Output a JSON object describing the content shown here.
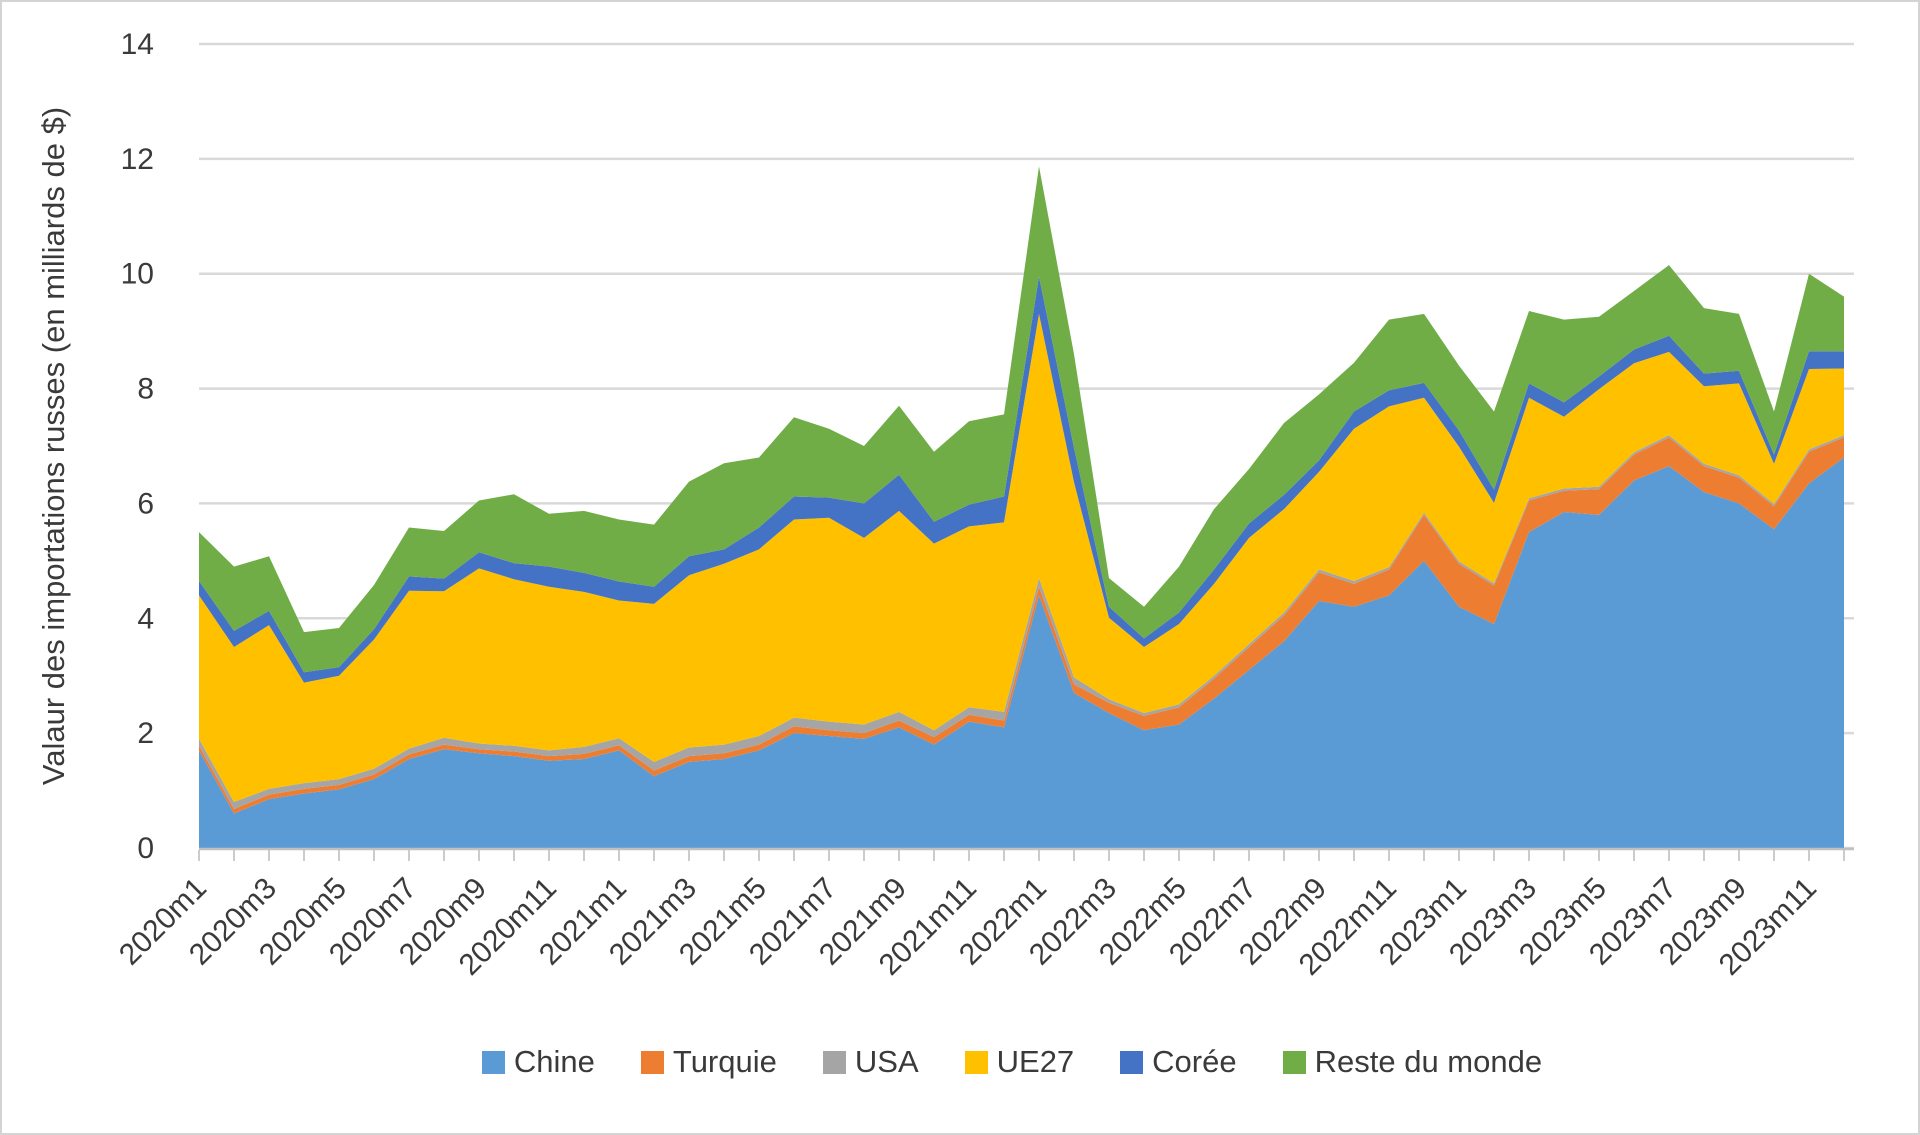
{
  "y_axis": {
    "title": "Valaur des importations russes (en milliards de $)",
    "ticks": [
      "0",
      "2",
      "4",
      "6",
      "8",
      "10",
      "12",
      "14"
    ]
  },
  "colors": {
    "gridline": "#d9d9d9",
    "axis_line": "#bfbfbf",
    "tick_mark": "#bfbfbf",
    "text": "#3a3a3a"
  },
  "chart_data": {
    "type": "area",
    "stacked": true,
    "title": "",
    "xlabel": "",
    "ylabel": "Valaur des importations russes (en milliards de $)",
    "ylim": [
      0,
      14
    ],
    "y_tick_step": 2,
    "grid": true,
    "legend_position": "bottom",
    "x_label_every": 2,
    "x": [
      "2020m1",
      "2020m2",
      "2020m3",
      "2020m4",
      "2020m5",
      "2020m6",
      "2020m7",
      "2020m8",
      "2020m9",
      "2020m10",
      "2020m11",
      "2020m12",
      "2021m1",
      "2021m2",
      "2021m3",
      "2021m4",
      "2021m5",
      "2021m6",
      "2021m7",
      "2021m8",
      "2021m9",
      "2021m10",
      "2021m11",
      "2021m12",
      "2022m1",
      "2022m2",
      "2022m3",
      "2022m4",
      "2022m5",
      "2022m6",
      "2022m7",
      "2022m8",
      "2022m9",
      "2022m10",
      "2022m11",
      "2022m12",
      "2023m1",
      "2023m2",
      "2023m3",
      "2023m4",
      "2023m5",
      "2023m6",
      "2023m7",
      "2023m8",
      "2023m9",
      "2023m10",
      "2023m11",
      "2023m12"
    ],
    "series": [
      {
        "name": "Chine",
        "color": "#5B9BD5",
        "values": [
          1.7,
          0.6,
          0.85,
          0.95,
          1.02,
          1.2,
          1.55,
          1.72,
          1.65,
          1.6,
          1.52,
          1.55,
          1.7,
          1.25,
          1.5,
          1.55,
          1.7,
          2.0,
          1.95,
          1.9,
          2.1,
          1.8,
          2.2,
          2.1,
          4.4,
          2.7,
          2.35,
          2.05,
          2.15,
          2.6,
          3.1,
          3.6,
          4.3,
          4.2,
          4.4,
          5.0,
          4.2,
          3.9,
          5.5,
          5.85,
          5.8,
          6.4,
          6.65,
          6.2,
          6.0,
          5.55,
          6.35,
          6.8
        ]
      },
      {
        "name": "Turquie",
        "color": "#ED7D31",
        "values": [
          0.08,
          0.08,
          0.08,
          0.08,
          0.08,
          0.08,
          0.08,
          0.08,
          0.07,
          0.08,
          0.08,
          0.09,
          0.09,
          0.1,
          0.1,
          0.1,
          0.1,
          0.12,
          0.1,
          0.1,
          0.12,
          0.13,
          0.12,
          0.12,
          0.15,
          0.15,
          0.18,
          0.25,
          0.3,
          0.35,
          0.4,
          0.45,
          0.5,
          0.4,
          0.45,
          0.8,
          0.75,
          0.67,
          0.55,
          0.37,
          0.45,
          0.45,
          0.5,
          0.45,
          0.45,
          0.4,
          0.55,
          0.35
        ]
      },
      {
        "name": "USA",
        "color": "#A5A5A5",
        "values": [
          0.12,
          0.12,
          0.1,
          0.1,
          0.1,
          0.1,
          0.1,
          0.12,
          0.1,
          0.1,
          0.1,
          0.12,
          0.12,
          0.15,
          0.15,
          0.15,
          0.15,
          0.15,
          0.15,
          0.15,
          0.15,
          0.12,
          0.13,
          0.15,
          0.15,
          0.12,
          0.06,
          0.05,
          0.05,
          0.05,
          0.05,
          0.05,
          0.05,
          0.05,
          0.04,
          0.04,
          0.04,
          0.04,
          0.04,
          0.04,
          0.04,
          0.04,
          0.04,
          0.04,
          0.04,
          0.04,
          0.04,
          0.04
        ]
      },
      {
        "name": "UE27",
        "color": "#FFC000",
        "values": [
          2.5,
          2.7,
          2.85,
          1.75,
          1.8,
          2.25,
          2.75,
          2.55,
          3.05,
          2.9,
          2.85,
          2.7,
          2.4,
          2.75,
          3.0,
          3.15,
          3.25,
          3.45,
          3.55,
          3.25,
          3.5,
          3.25,
          3.15,
          3.3,
          4.6,
          3.4,
          1.42,
          1.15,
          1.4,
          1.6,
          1.85,
          1.8,
          1.7,
          2.65,
          2.8,
          2.0,
          2.0,
          1.4,
          1.75,
          1.25,
          1.7,
          1.55,
          1.45,
          1.35,
          1.6,
          0.7,
          1.4,
          1.16
        ]
      },
      {
        "name": "Corée",
        "color": "#4472C4",
        "values": [
          0.25,
          0.28,
          0.25,
          0.18,
          0.15,
          0.18,
          0.25,
          0.22,
          0.28,
          0.28,
          0.35,
          0.33,
          0.33,
          0.3,
          0.33,
          0.25,
          0.38,
          0.4,
          0.35,
          0.6,
          0.63,
          0.38,
          0.38,
          0.45,
          0.65,
          0.6,
          0.19,
          0.15,
          0.2,
          0.25,
          0.25,
          0.25,
          0.2,
          0.3,
          0.28,
          0.26,
          0.28,
          0.23,
          0.25,
          0.25,
          0.22,
          0.24,
          0.28,
          0.22,
          0.22,
          0.16,
          0.31,
          0.3
        ]
      },
      {
        "name": "Reste du monde",
        "color": "#70AD47",
        "values": [
          0.85,
          1.12,
          0.95,
          0.7,
          0.68,
          0.77,
          0.85,
          0.83,
          0.9,
          1.2,
          0.92,
          1.08,
          1.08,
          1.08,
          1.3,
          1.5,
          1.22,
          1.38,
          1.2,
          1.0,
          1.2,
          1.22,
          1.45,
          1.43,
          1.92,
          1.63,
          0.5,
          0.55,
          0.8,
          1.05,
          0.95,
          1.25,
          1.15,
          0.85,
          1.23,
          1.2,
          1.13,
          1.36,
          1.26,
          1.44,
          1.04,
          1.02,
          1.23,
          1.14,
          0.99,
          0.75,
          1.35,
          0.95
        ]
      }
    ]
  }
}
